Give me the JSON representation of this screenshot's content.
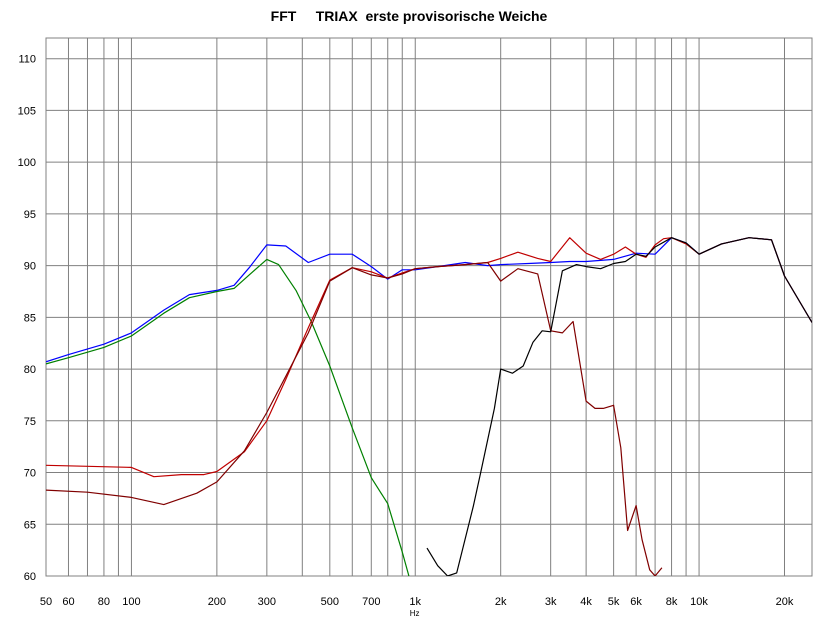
{
  "chart_data": {
    "type": "line",
    "title": "FFT     TRIAX  erste provisorische Weiche",
    "xlabel": "Hz",
    "ylabel": "",
    "x_scale": "log",
    "xlim": [
      50,
      25000
    ],
    "ylim": [
      60,
      112
    ],
    "grid": true,
    "legend": "none",
    "x_ticks": [
      {
        "value": 50,
        "label": "50"
      },
      {
        "value": 60,
        "label": "60"
      },
      {
        "value": 80,
        "label": "80"
      },
      {
        "value": 100,
        "label": "100"
      },
      {
        "value": 200,
        "label": "200"
      },
      {
        "value": 300,
        "label": "300"
      },
      {
        "value": 500,
        "label": "500"
      },
      {
        "value": 700,
        "label": "700"
      },
      {
        "value": 1000,
        "label": "1k"
      },
      {
        "value": 2000,
        "label": "2k"
      },
      {
        "value": 3000,
        "label": "3k"
      },
      {
        "value": 4000,
        "label": "4k"
      },
      {
        "value": 5000,
        "label": "5k"
      },
      {
        "value": 6000,
        "label": "6k"
      },
      {
        "value": 8000,
        "label": "8k"
      },
      {
        "value": 10000,
        "label": "10k"
      },
      {
        "value": 20000,
        "label": "20k"
      }
    ],
    "y_ticks": [
      60,
      65,
      70,
      75,
      80,
      85,
      90,
      95,
      100,
      105,
      110
    ],
    "series": [
      {
        "color": "#0000ff",
        "x": [
          50,
          60,
          80,
          100,
          130,
          160,
          200,
          230,
          260,
          300,
          350,
          420,
          500,
          600,
          700,
          800,
          900,
          1000,
          1200,
          1500,
          1800,
          2000,
          2500,
          3000,
          3500,
          4000,
          5000,
          6000,
          7000,
          8000,
          9000,
          10000,
          12000,
          15000,
          18000,
          20000,
          25000
        ],
        "y": [
          80.7,
          81.4,
          82.4,
          83.5,
          85.7,
          87.2,
          87.6,
          88.1,
          89.8,
          92.0,
          91.9,
          90.3,
          91.1,
          91.1,
          89.9,
          88.7,
          89.6,
          89.6,
          89.9,
          90.3,
          90.0,
          90.1,
          90.2,
          90.3,
          90.4,
          90.4,
          90.6,
          91.2,
          91.1,
          92.7,
          92.2,
          91.1,
          92.1,
          92.7,
          92.5,
          89.0,
          84.5
        ]
      },
      {
        "color": "#008000",
        "x": [
          50,
          60,
          80,
          100,
          130,
          160,
          200,
          230,
          260,
          300,
          330,
          380,
          430,
          500,
          600,
          700,
          800,
          900,
          950
        ],
        "y": [
          80.5,
          81.1,
          82.1,
          83.2,
          85.4,
          86.9,
          87.5,
          87.8,
          89.1,
          90.6,
          90.1,
          87.6,
          84.6,
          80.3,
          74.3,
          69.5,
          67.0,
          62.3,
          60.0
        ]
      },
      {
        "color": "#c00000",
        "x": [
          50,
          70,
          100,
          120,
          150,
          180,
          200,
          250,
          300,
          350,
          420,
          500,
          600,
          700,
          800,
          900,
          1000,
          1200,
          1500,
          1800,
          2000,
          2300,
          2700,
          3000,
          3500,
          4000,
          4500,
          5000,
          5500,
          6000,
          6500,
          7000,
          7500,
          8000,
          9000,
          10000,
          12000,
          15000,
          18000,
          20000,
          25000
        ],
        "y": [
          70.7,
          70.6,
          70.5,
          69.6,
          69.8,
          69.8,
          70.1,
          72.0,
          75.0,
          79.0,
          84.0,
          88.6,
          89.8,
          89.4,
          88.8,
          89.3,
          89.7,
          89.9,
          90.1,
          90.3,
          90.7,
          91.3,
          90.7,
          90.4,
          92.7,
          91.2,
          90.6,
          91.1,
          91.8,
          91.1,
          90.8,
          92.0,
          92.6,
          92.7,
          92.1,
          91.1,
          92.1,
          92.7,
          92.5,
          89.0,
          84.5
        ]
      },
      {
        "color": "#800000",
        "x": [
          50,
          70,
          100,
          130,
          170,
          200,
          250,
          300,
          350,
          420,
          500,
          600,
          700,
          800,
          900,
          1000,
          1200,
          1500,
          1800,
          2000,
          2300,
          2700,
          3000,
          3300,
          3600,
          4000,
          4300,
          4600,
          5000,
          5300,
          5600,
          6000,
          6300,
          6700,
          7000,
          7400
        ],
        "y": [
          68.3,
          68.1,
          67.6,
          66.9,
          68.0,
          69.1,
          72.1,
          75.8,
          79.3,
          83.5,
          88.5,
          89.8,
          89.1,
          88.8,
          89.2,
          89.7,
          89.9,
          90.1,
          90.3,
          88.5,
          89.7,
          89.2,
          83.7,
          83.5,
          84.6,
          76.9,
          76.2,
          76.2,
          76.5,
          72.4,
          64.4,
          66.8,
          63.5,
          60.6,
          60.0,
          60.8
        ]
      },
      {
        "color": "#000000",
        "x": [
          1100,
          1200,
          1300,
          1400,
          1600,
          1700,
          1900,
          2000,
          2200,
          2400,
          2600,
          2800,
          3000,
          3300,
          3700,
          4000,
          4500,
          5000,
          5500,
          6000,
          6500,
          7000,
          8000,
          9000,
          10000,
          12000,
          15000,
          18000,
          20000,
          25000
        ],
        "y": [
          62.7,
          61.0,
          60.0,
          60.3,
          66.7,
          70.0,
          76.2,
          80.0,
          79.6,
          80.3,
          82.6,
          83.7,
          83.6,
          89.5,
          90.1,
          89.9,
          89.7,
          90.2,
          90.4,
          91.1,
          90.9,
          91.8,
          92.7,
          92.2,
          91.1,
          92.1,
          92.7,
          92.5,
          89.0,
          84.5
        ]
      }
    ]
  }
}
